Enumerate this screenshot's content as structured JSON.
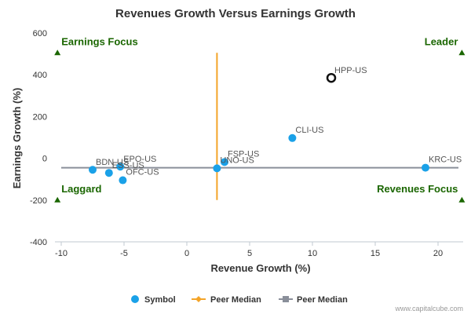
{
  "chart_data": {
    "type": "scatter",
    "title": "Revenues Growth Versus Earnings Growth",
    "xlabel": "Revenue Growth (%)",
    "ylabel": "Earnings Growth (%)",
    "xlim": [
      -10.5,
      22
    ],
    "ylim": [
      -400,
      600
    ],
    "x_ticks": [
      -10,
      -5,
      0,
      5,
      10,
      15,
      20
    ],
    "y_ticks": [
      -400,
      -200,
      0,
      200,
      400,
      600
    ],
    "grid": false,
    "legend_position": "bottom",
    "series": [
      {
        "name": "Symbol",
        "color": "#1aa1e8",
        "points": [
          {
            "label": "BDN-US",
            "x": -7.5,
            "y": -55
          },
          {
            "label": "ESS-US",
            "x": -6.2,
            "y": -70
          },
          {
            "label": "EPO-US",
            "x": -5.3,
            "y": -40
          },
          {
            "label": "OFC-US",
            "x": -5.1,
            "y": -105
          },
          {
            "label": "UNO-US",
            "x": 2.4,
            "y": -48
          },
          {
            "label": "FSP-US",
            "x": 3.0,
            "y": -18
          },
          {
            "label": "CLI-US",
            "x": 8.4,
            "y": 97
          },
          {
            "label": "KRC-US",
            "x": 19.0,
            "y": -45
          }
        ]
      },
      {
        "name": "Peer Median",
        "color": "#f4a428",
        "x": 2.4,
        "y_range": [
          -200,
          505
        ]
      },
      {
        "name": "Peer Median",
        "color": "#8a8f9a",
        "y": -45,
        "x_range": [
          -10.5,
          22
        ]
      }
    ],
    "highlight": {
      "label": "HPP-US",
      "x": 11.5,
      "y": 385
    },
    "quadrant_labels": [
      {
        "text": "Earnings Focus",
        "x": -10.3,
        "y": 505
      },
      {
        "text": "Leader",
        "x": 21.9,
        "y": 505
      },
      {
        "text": "Laggard",
        "x": -10.3,
        "y": -200
      },
      {
        "text": "Revenues Focus",
        "x": 21.9,
        "y": -200
      }
    ],
    "quadrant_marker_color": "#1a6600"
  },
  "credit": "www.capitalcube.com"
}
